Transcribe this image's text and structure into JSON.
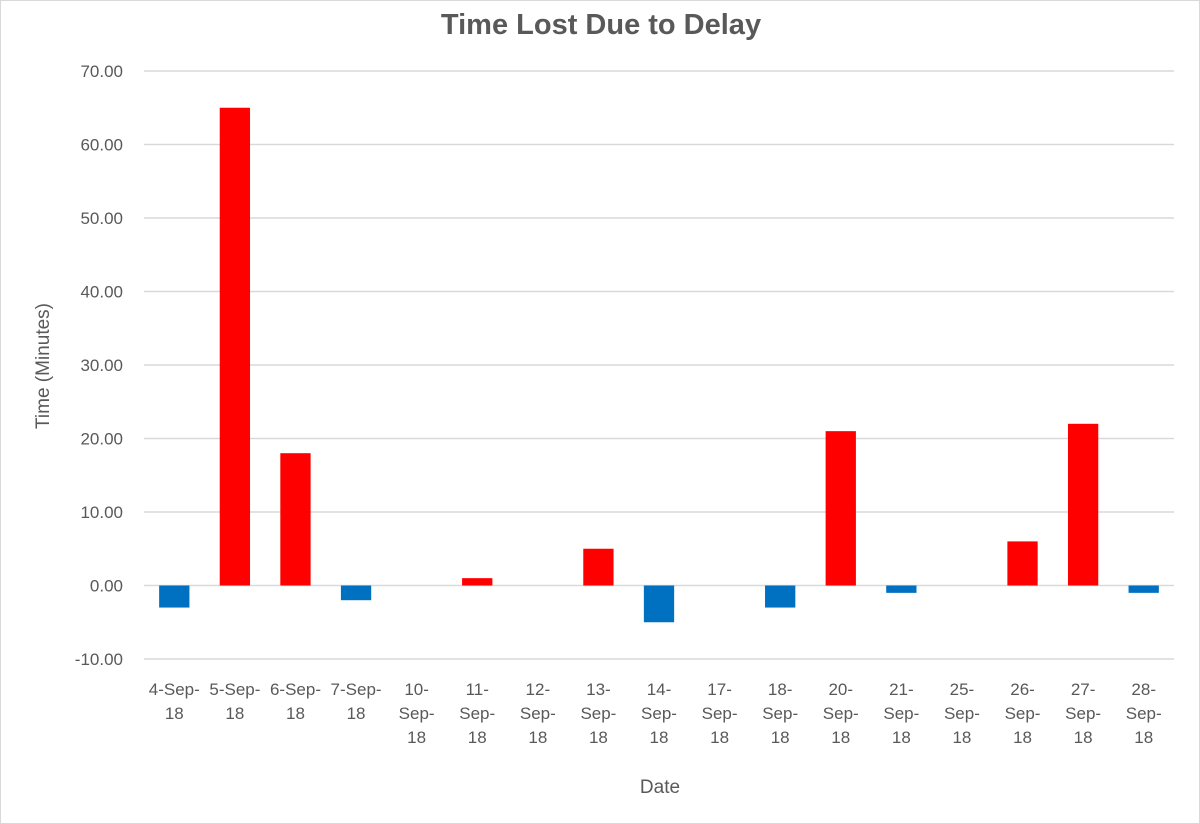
{
  "chart_data": {
    "type": "bar",
    "title": "Time Lost Due to Delay",
    "xlabel": "Date",
    "ylabel": "Time (Minutes)",
    "ylim": [
      -10,
      70
    ],
    "y_ticks": [
      70,
      60,
      50,
      40,
      30,
      20,
      10,
      0,
      -10
    ],
    "y_tick_labels": [
      "70.00",
      "60.00",
      "50.00",
      "40.00",
      "30.00",
      "20.00",
      "10.00",
      "0.00",
      "-10.00"
    ],
    "grid": true,
    "legend": "none",
    "categories": [
      "4-Sep-18",
      "5-Sep-18",
      "6-Sep-18",
      "7-Sep-18",
      "10-Sep-18",
      "11-Sep-18",
      "12-Sep-18",
      "13-Sep-18",
      "14-Sep-18",
      "17-Sep-18",
      "18-Sep-18",
      "20-Sep-18",
      "21-Sep-18",
      "25-Sep-18",
      "26-Sep-18",
      "27-Sep-18",
      "28-Sep-18"
    ],
    "category_label_lines": [
      [
        "4-Sep-",
        "18"
      ],
      [
        "5-Sep-",
        "18"
      ],
      [
        "6-Sep-",
        "18"
      ],
      [
        "7-Sep-",
        "18"
      ],
      [
        "10-",
        "Sep-",
        "18"
      ],
      [
        "11-",
        "Sep-",
        "18"
      ],
      [
        "12-",
        "Sep-",
        "18"
      ],
      [
        "13-",
        "Sep-",
        "18"
      ],
      [
        "14-",
        "Sep-",
        "18"
      ],
      [
        "17-",
        "Sep-",
        "18"
      ],
      [
        "18-",
        "Sep-",
        "18"
      ],
      [
        "20-",
        "Sep-",
        "18"
      ],
      [
        "21-",
        "Sep-",
        "18"
      ],
      [
        "25-",
        "Sep-",
        "18"
      ],
      [
        "26-",
        "Sep-",
        "18"
      ],
      [
        "27-",
        "Sep-",
        "18"
      ],
      [
        "28-",
        "Sep-",
        "18"
      ]
    ],
    "values": [
      -3,
      65,
      18,
      -2,
      0,
      1,
      0,
      5,
      -5,
      0,
      -3,
      21,
      -1,
      0,
      6,
      22,
      -1
    ],
    "colors": {
      "positive": "#ff0000",
      "negative": "#0070c0"
    }
  }
}
